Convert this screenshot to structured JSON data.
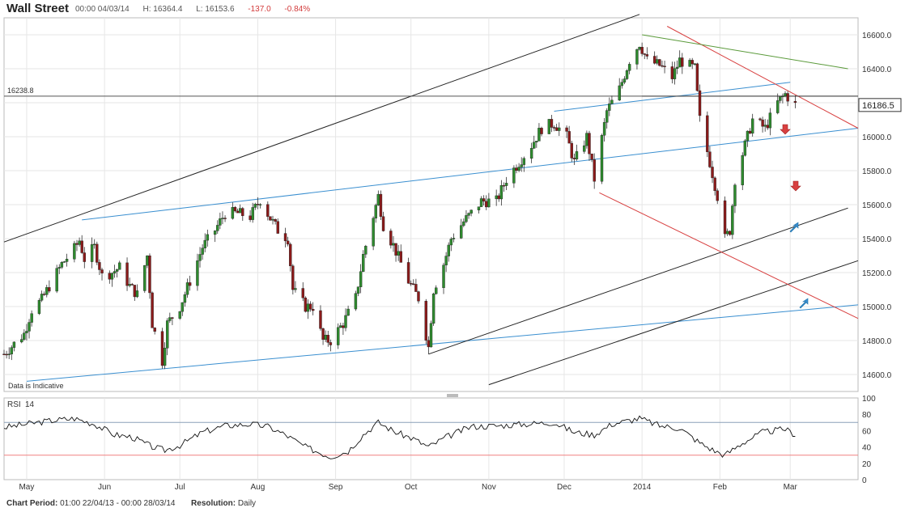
{
  "header": {
    "title": "Wall Street",
    "datetime": "00:00 04/03/14",
    "high": "H: 16364.4",
    "low": "L: 16153.6",
    "change": "-137.0",
    "change_pct": "-0.84%"
  },
  "footer": {
    "period_label": "Chart Period:",
    "period_value": "01:00 22/04/13 - 00:00 28/03/14",
    "resolution_label": "Resolution:",
    "resolution_value": "Daily"
  },
  "colors": {
    "up": "#2e8b2e",
    "down": "#8b1a1a",
    "blue": "#3a8fd0",
    "red": "#d84040",
    "green": "#5a9a3a",
    "black": "#222222",
    "rsi_line": "#111111",
    "rsi_upper": "#8aa0b8",
    "rsi_lower": "#f08080"
  },
  "chart_data": [
    {
      "type": "candlestick",
      "price_label": "16238.8",
      "last_price": "16186.5",
      "watermark": "Data is Indicative",
      "ylim": [
        14500,
        16700
      ],
      "y_ticks": [
        "14600.0",
        "14800.0",
        "15000.0",
        "15200.0",
        "15400.0",
        "15600.0",
        "15800.0",
        "16000.0",
        "16200.0",
        "16400.0",
        "16600.0"
      ],
      "x_ticks": [
        {
          "label": "May",
          "date": "2013-05-01"
        },
        {
          "label": "Jun",
          "date": "2013-06-01"
        },
        {
          "label": "Jul",
          "date": "2013-07-01"
        },
        {
          "label": "Aug",
          "date": "2013-08-01"
        },
        {
          "label": "Sep",
          "date": "2013-09-01"
        },
        {
          "label": "Oct",
          "date": "2013-10-01"
        },
        {
          "label": "Nov",
          "date": "2013-11-01"
        },
        {
          "label": "Dec",
          "date": "2013-12-01"
        },
        {
          "label": "2014",
          "date": "2014-01-01"
        },
        {
          "label": "Feb",
          "date": "2014-02-01"
        },
        {
          "label": "Mar",
          "date": "2014-03-01"
        }
      ],
      "x_range": [
        "2013-04-22",
        "2014-03-28"
      ],
      "closes": [
        {
          "d": "2013-04-22",
          "c": 14720
        },
        {
          "d": "2013-04-30",
          "c": 14840
        },
        {
          "d": "2013-05-03",
          "c": 14980
        },
        {
          "d": "2013-05-07",
          "c": 15040
        },
        {
          "d": "2013-05-10",
          "c": 15120
        },
        {
          "d": "2013-05-15",
          "c": 15250
        },
        {
          "d": "2013-05-20",
          "c": 15340
        },
        {
          "d": "2013-05-22",
          "c": 15390
        },
        {
          "d": "2013-05-24",
          "c": 15280
        },
        {
          "d": "2013-05-28",
          "c": 15350
        },
        {
          "d": "2013-05-31",
          "c": 15180
        },
        {
          "d": "2013-06-04",
          "c": 15200
        },
        {
          "d": "2013-06-07",
          "c": 15230
        },
        {
          "d": "2013-06-11",
          "c": 15120
        },
        {
          "d": "2013-06-14",
          "c": 15070
        },
        {
          "d": "2013-06-18",
          "c": 15300
        },
        {
          "d": "2013-06-20",
          "c": 14900
        },
        {
          "d": "2013-06-24",
          "c": 14680
        },
        {
          "d": "2013-06-26",
          "c": 14900
        },
        {
          "d": "2013-07-01",
          "c": 15000
        },
        {
          "d": "2013-07-05",
          "c": 15150
        },
        {
          "d": "2013-07-10",
          "c": 15350
        },
        {
          "d": "2013-07-15",
          "c": 15450
        },
        {
          "d": "2013-07-19",
          "c": 15550
        },
        {
          "d": "2013-07-24",
          "c": 15550
        },
        {
          "d": "2013-07-29",
          "c": 15530
        },
        {
          "d": "2013-08-02",
          "c": 15630
        },
        {
          "d": "2013-08-06",
          "c": 15520
        },
        {
          "d": "2013-08-09",
          "c": 15450
        },
        {
          "d": "2013-08-13",
          "c": 15400
        },
        {
          "d": "2013-08-15",
          "c": 15100
        },
        {
          "d": "2013-08-20",
          "c": 15000
        },
        {
          "d": "2013-08-23",
          "c": 15000
        },
        {
          "d": "2013-08-27",
          "c": 14800
        },
        {
          "d": "2013-08-30",
          "c": 14800
        },
        {
          "d": "2013-09-04",
          "c": 14900
        },
        {
          "d": "2013-09-09",
          "c": 15050
        },
        {
          "d": "2013-09-12",
          "c": 15300
        },
        {
          "d": "2013-09-18",
          "c": 15650
        },
        {
          "d": "2013-09-20",
          "c": 15480
        },
        {
          "d": "2013-09-24",
          "c": 15360
        },
        {
          "d": "2013-09-30",
          "c": 15150
        },
        {
          "d": "2013-10-04",
          "c": 15050
        },
        {
          "d": "2013-10-08",
          "c": 14760
        },
        {
          "d": "2013-10-10",
          "c": 15100
        },
        {
          "d": "2013-10-14",
          "c": 15250
        },
        {
          "d": "2013-10-17",
          "c": 15400
        },
        {
          "d": "2013-10-22",
          "c": 15500
        },
        {
          "d": "2013-10-25",
          "c": 15550
        },
        {
          "d": "2013-10-29",
          "c": 15620
        },
        {
          "d": "2013-11-04",
          "c": 15620
        },
        {
          "d": "2013-11-08",
          "c": 15750
        },
        {
          "d": "2013-11-13",
          "c": 15850
        },
        {
          "d": "2013-11-18",
          "c": 15950
        },
        {
          "d": "2013-11-22",
          "c": 16050
        },
        {
          "d": "2013-11-27",
          "c": 16080
        },
        {
          "d": "2013-12-02",
          "c": 16000
        },
        {
          "d": "2013-12-05",
          "c": 15850
        },
        {
          "d": "2013-12-10",
          "c": 16000
        },
        {
          "d": "2013-12-13",
          "c": 15750
        },
        {
          "d": "2013-12-18",
          "c": 16150
        },
        {
          "d": "2013-12-23",
          "c": 16280
        },
        {
          "d": "2013-12-27",
          "c": 16450
        },
        {
          "d": "2013-12-31",
          "c": 16550
        },
        {
          "d": "2014-01-03",
          "c": 16450
        },
        {
          "d": "2014-01-08",
          "c": 16420
        },
        {
          "d": "2014-01-13",
          "c": 16350
        },
        {
          "d": "2014-01-16",
          "c": 16450
        },
        {
          "d": "2014-01-22",
          "c": 16400
        },
        {
          "d": "2014-01-24",
          "c": 16100
        },
        {
          "d": "2014-01-28",
          "c": 15850
        },
        {
          "d": "2014-01-31",
          "c": 15650
        },
        {
          "d": "2014-02-03",
          "c": 15400
        },
        {
          "d": "2014-02-05",
          "c": 15450
        },
        {
          "d": "2014-02-07",
          "c": 15750
        },
        {
          "d": "2014-02-11",
          "c": 15950
        },
        {
          "d": "2014-02-14",
          "c": 16100
        },
        {
          "d": "2014-02-19",
          "c": 16050
        },
        {
          "d": "2014-02-24",
          "c": 16200
        },
        {
          "d": "2014-02-27",
          "c": 16250
        },
        {
          "d": "2014-03-03",
          "c": 16186
        }
      ]
    },
    {
      "type": "line",
      "title": "RSI",
      "period": "14",
      "ylim": [
        0,
        100
      ],
      "y_ticks": [
        "0",
        "20",
        "40",
        "60",
        "80",
        "100"
      ],
      "levels": [
        70,
        30
      ],
      "series": [
        {
          "values": [
            {
              "d": "2013-04-22",
              "v": 64
            },
            {
              "d": "2013-05-01",
              "v": 68
            },
            {
              "d": "2013-05-10",
              "v": 72
            },
            {
              "d": "2013-05-20",
              "v": 75
            },
            {
              "d": "2013-05-28",
              "v": 68
            },
            {
              "d": "2013-06-05",
              "v": 55
            },
            {
              "d": "2013-06-12",
              "v": 52
            },
            {
              "d": "2013-06-20",
              "v": 40
            },
            {
              "d": "2013-06-25",
              "v": 36
            },
            {
              "d": "2013-07-01",
              "v": 42
            },
            {
              "d": "2013-07-10",
              "v": 58
            },
            {
              "d": "2013-07-19",
              "v": 66
            },
            {
              "d": "2013-07-29",
              "v": 68
            },
            {
              "d": "2013-08-05",
              "v": 65
            },
            {
              "d": "2013-08-12",
              "v": 55
            },
            {
              "d": "2013-08-20",
              "v": 40
            },
            {
              "d": "2013-08-30",
              "v": 28
            },
            {
              "d": "2013-09-06",
              "v": 35
            },
            {
              "d": "2013-09-12",
              "v": 55
            },
            {
              "d": "2013-09-18",
              "v": 70
            },
            {
              "d": "2013-09-25",
              "v": 58
            },
            {
              "d": "2013-10-02",
              "v": 50
            },
            {
              "d": "2013-10-08",
              "v": 40
            },
            {
              "d": "2013-10-15",
              "v": 52
            },
            {
              "d": "2013-10-25",
              "v": 65
            },
            {
              "d": "2013-11-05",
              "v": 66
            },
            {
              "d": "2013-11-15",
              "v": 68
            },
            {
              "d": "2013-11-27",
              "v": 70
            },
            {
              "d": "2013-12-05",
              "v": 58
            },
            {
              "d": "2013-12-13",
              "v": 55
            },
            {
              "d": "2013-12-20",
              "v": 68
            },
            {
              "d": "2013-12-31",
              "v": 75
            },
            {
              "d": "2014-01-08",
              "v": 66
            },
            {
              "d": "2014-01-16",
              "v": 63
            },
            {
              "d": "2014-01-24",
              "v": 45
            },
            {
              "d": "2014-01-30",
              "v": 35
            },
            {
              "d": "2014-02-03",
              "v": 30
            },
            {
              "d": "2014-02-10",
              "v": 45
            },
            {
              "d": "2014-02-18",
              "v": 58
            },
            {
              "d": "2014-02-27",
              "v": 62
            },
            {
              "d": "2014-03-03",
              "v": 55
            }
          ]
        }
      ]
    }
  ]
}
